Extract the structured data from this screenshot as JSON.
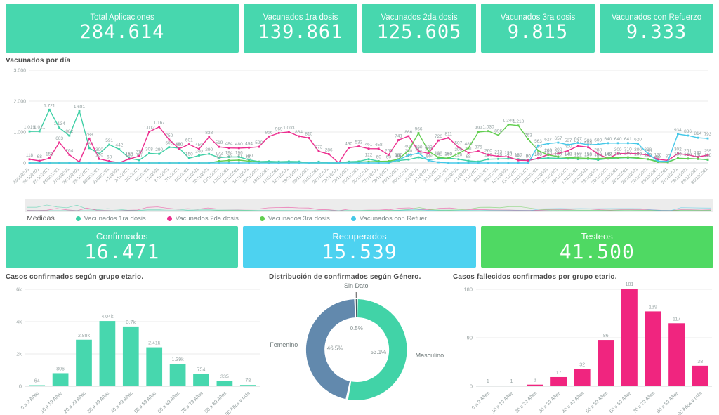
{
  "kpi_row_top": [
    {
      "label": "Total Aplicaciones",
      "value": "284.614",
      "color": "#47d7ae"
    },
    {
      "label": "Vacunados 1ra dosis",
      "value": "139.861",
      "color": "#47d7ae"
    },
    {
      "label": "Vacunados 2da dosis",
      "value": "125.605",
      "color": "#47d7ae"
    },
    {
      "label": "Vacunados 3ra dosis",
      "value": "9.815",
      "color": "#47d7ae"
    },
    {
      "label": "Vacunados con Refuerzo",
      "value": "9.333",
      "color": "#47d7ae"
    }
  ],
  "kpi_row_bottom": [
    {
      "label": "Confirmados",
      "value": "16.471",
      "color": "#47d7ae"
    },
    {
      "label": "Recuperados",
      "value": "15.539",
      "color": "#4dd2f0"
    },
    {
      "label": "Testeos",
      "value": "41.500",
      "color": "#4fd963"
    }
  ],
  "line_section": {
    "title": "Vacunados por día",
    "legend_title": "Medidas",
    "legend": [
      {
        "label": "Vacunados 1ra dosis",
        "color": "#3fd0a6"
      },
      {
        "label": "Vacunados 2da dosis",
        "color": "#ec2e8f"
      },
      {
        "label": "Vacunados 3ra dosis",
        "color": "#62ce50"
      },
      {
        "label": "Vacunados con Refuer...",
        "color": "#45c8e8"
      }
    ]
  },
  "chart_data": [
    {
      "id": "vacunados_por_dia",
      "type": "line",
      "title": "Vacunados por día",
      "ylim": [
        0,
        3000
      ],
      "yticks": [
        "0",
        "1.000",
        "2.000",
        "3.000"
      ],
      "x": [
        "23/10/2021",
        "24/10/2021",
        "25/10/2021",
        "26/10/2021",
        "27/10/2021",
        "28/10/2021",
        "29/10/2021",
        "30/10/2021",
        "31/10/2021",
        "1/11/2021",
        "2/11/2021",
        "3/11/2021",
        "4/11/2021",
        "5/11/2021",
        "6/11/2021",
        "7/11/2021",
        "8/11/2021",
        "9/11/2021",
        "10/11/2021",
        "11/11/2021",
        "12/11/2021",
        "13/11/2021",
        "14/11/2021",
        "15/11/2021",
        "16/11/2021",
        "17/11/2021",
        "18/11/2021",
        "19/11/2021",
        "20/11/2021",
        "21/11/2021",
        "22/11/2021",
        "23/11/2021",
        "24/11/2021",
        "25/11/2021",
        "26/11/2021",
        "27/11/2021",
        "28/11/2021",
        "29/11/2021",
        "30/11/2021",
        "1/12/2021",
        "2/12/2021",
        "3/12/2021",
        "4/12/2021",
        "5/12/2021",
        "6/12/2021",
        "7/12/2021",
        "8/12/2021",
        "9/12/2021",
        "10/12/2021",
        "11/12/2021",
        "12/12/2021",
        "13/12/2021",
        "14/12/2021",
        "15/12/2021",
        "16/12/2021",
        "17/12/2021",
        "18/12/2021",
        "19/12/2021",
        "20/12/2021",
        "21/12/2021",
        "22/12/2021",
        "23/12/2021",
        "24/12/2021",
        "25/12/2021",
        "26/12/2021",
        "27/12/2021",
        "28/12/2021",
        "29/12/2021",
        "30/12/2021"
      ],
      "series": [
        {
          "name": "Vacunados 1ra dosis",
          "color": "#3fd0a6",
          "values": [
            1019,
            1021,
            1721,
            1134,
            882,
            1681,
            480,
            300,
            591,
            442,
            150,
            90,
            308,
            290,
            508,
            480,
            150,
            240,
            290,
            172,
            194,
            196,
            100,
            43,
            53,
            41,
            49,
            44,
            0,
            39,
            0,
            0,
            41,
            49,
            122,
            60,
            30,
            80,
            110,
            180,
            100,
            140,
            160,
            120,
            68,
            43,
            120,
            130,
            140,
            120,
            80,
            140,
            160,
            150,
            140,
            122,
            130,
            100,
            142,
            160,
            170,
            150,
            120,
            60,
            40,
            150,
            140,
            130,
            100
          ]
        },
        {
          "name": "Vacunados 2da dosis",
          "color": "#ec2e8f",
          "values": [
            118,
            68,
            150,
            663,
            264,
            30,
            788,
            130,
            60,
            10,
            130,
            219,
            1012,
            1167,
            750,
            460,
            601,
            450,
            838,
            519,
            484,
            480,
            494,
            520,
            856,
            969,
            1003,
            864,
            810,
            373,
            286,
            0,
            490,
            533,
            461,
            458,
            260,
            741,
            866,
            380,
            307,
            726,
            811,
            507,
            331,
            375,
            260,
            213,
            196,
            86,
            80,
            150,
            269,
            300,
            400,
            547,
            508,
            288,
            142,
            300,
            310,
            300,
            250,
            120,
            80,
            302,
            261,
            192,
            255
          ]
        },
        {
          "name": "Vacunados 3ra dosis",
          "color": "#62ce50",
          "values": [
            0,
            0,
            0,
            0,
            0,
            0,
            0,
            0,
            0,
            0,
            0,
            0,
            0,
            0,
            0,
            0,
            0,
            0,
            0,
            60,
            80,
            90,
            60,
            30,
            20,
            15,
            10,
            10,
            0,
            0,
            0,
            0,
            20,
            30,
            40,
            50,
            60,
            120,
            400,
            966,
            380,
            180,
            150,
            300,
            480,
            999,
            1030,
            896,
            1240,
            1210,
            763,
            400,
            260,
            200,
            170,
            160,
            150,
            140,
            160,
            170,
            180,
            160,
            120,
            30,
            20,
            150,
            140,
            130,
            110
          ]
        },
        {
          "name": "Vacunados con Refuer...",
          "color": "#45c8e8",
          "values": [
            0,
            0,
            0,
            0,
            0,
            0,
            0,
            0,
            0,
            0,
            0,
            0,
            0,
            0,
            0,
            0,
            0,
            0,
            0,
            0,
            0,
            0,
            0,
            0,
            0,
            0,
            0,
            0,
            0,
            0,
            0,
            0,
            0,
            0,
            0,
            0,
            0,
            100,
            250,
            311,
            80,
            20,
            0,
            0,
            0,
            0,
            0,
            0,
            0,
            0,
            0,
            563,
            627,
            657,
            587,
            647,
            586,
            600,
            640,
            640,
            641,
            620,
            300,
            60,
            50,
            934,
            886,
            814,
            793
          ]
        }
      ]
    },
    {
      "id": "confirmados_grupo_etario",
      "type": "bar",
      "title": "Casos confirmados según grupo etario.",
      "categories": [
        "0 a 9 Años",
        "10 a 19 Años",
        "20 a 29 Años",
        "30 a 39 Años",
        "40 a 49 Años",
        "50 a 59 Años",
        "60 a 69 Años",
        "70 a 79 Años",
        "80 a 89 Años",
        "90 Años y más"
      ],
      "values": [
        64,
        806,
        2880,
        4040,
        3700,
        2410,
        1390,
        754,
        335,
        78
      ],
      "labels": [
        "64",
        "806",
        "2.88k",
        "4.04k",
        "3.7k",
        "2.41k",
        "1.39k",
        "754",
        "335",
        "78"
      ],
      "ylim": [
        0,
        6000
      ],
      "yticks": [
        "0",
        "2k",
        "4k",
        "6k"
      ],
      "color": "#47d7ae"
    },
    {
      "id": "genero_donut",
      "type": "pie",
      "title": "Distribución de confirmados según Género.",
      "slices": [
        {
          "label": "Masculino",
          "pct": 53.1,
          "pct_label": "53.1%",
          "color": "#41d3a7"
        },
        {
          "label": "Femenino",
          "pct": 46.5,
          "pct_label": "46.5%",
          "color": "#6289ad"
        },
        {
          "label": "Sin Dato",
          "pct": 0.5,
          "pct_label": "0.5%",
          "color": "#3d4a57"
        }
      ]
    },
    {
      "id": "fallecidos_grupo_etario",
      "type": "bar",
      "title": "Casos fallecidos confirmados por grupo etario.",
      "categories": [
        "0 a 9 Años",
        "10 a 19 Años",
        "20 a 29 Años",
        "30 a 39 Años",
        "40 a 49 Años",
        "50 a 59 Años",
        "60 a 69 Años",
        "70 a 79 Años",
        "80 a 89 Años",
        "90 Años y más"
      ],
      "values": [
        1,
        1,
        3,
        17,
        32,
        86,
        181,
        139,
        117,
        38
      ],
      "labels": [
        "1",
        "1",
        "3",
        "17",
        "32",
        "86",
        "181",
        "139",
        "117",
        "38"
      ],
      "ylim": [
        0,
        180
      ],
      "yticks": [
        "0",
        "90",
        "180"
      ],
      "color": "#f0257f"
    }
  ]
}
